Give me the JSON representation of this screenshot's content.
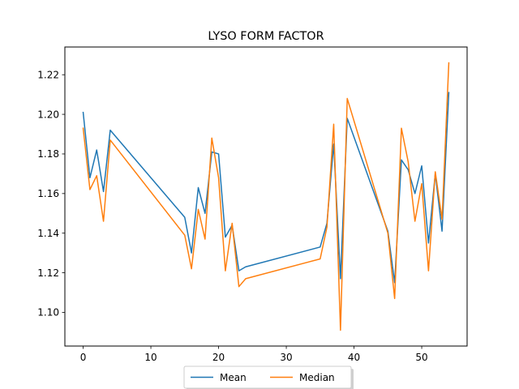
{
  "chart_data": {
    "type": "line",
    "title": "LYSO FORM FACTOR",
    "xlabel": "",
    "ylabel": "",
    "xlim": [
      -2.7,
      56.7
    ],
    "ylim": [
      1.083,
      1.234
    ],
    "xticks": [
      0,
      10,
      20,
      30,
      40,
      50
    ],
    "yticks": [
      1.1,
      1.12,
      1.14,
      1.16,
      1.18,
      1.2,
      1.22
    ],
    "grid": false,
    "legend": {
      "placement": "bottom-center-outside",
      "columns": 2
    },
    "series": [
      {
        "name": "Mean",
        "color": "#1f77b4",
        "points": [
          [
            0,
            1.201
          ],
          [
            1,
            1.168
          ],
          [
            2,
            1.182
          ],
          [
            3,
            1.161
          ],
          [
            4,
            1.192
          ],
          [
            15,
            1.148
          ],
          [
            16,
            1.13
          ],
          [
            17,
            1.163
          ],
          [
            18,
            1.15
          ],
          [
            19,
            1.181
          ],
          [
            20,
            1.18
          ],
          [
            21,
            1.138
          ],
          [
            22,
            1.144
          ],
          [
            23,
            1.121
          ],
          [
            24,
            1.123
          ],
          [
            35,
            1.133
          ],
          [
            36,
            1.145
          ],
          [
            37,
            1.185
          ],
          [
            38,
            1.117
          ],
          [
            39,
            1.198
          ],
          [
            45,
            1.141
          ],
          [
            46,
            1.115
          ],
          [
            47,
            1.177
          ],
          [
            48,
            1.172
          ],
          [
            49,
            1.16
          ],
          [
            50,
            1.174
          ],
          [
            51,
            1.135
          ],
          [
            52,
            1.17
          ],
          [
            53,
            1.141
          ],
          [
            54,
            1.211
          ]
        ]
      },
      {
        "name": "Median",
        "color": "#ff7f0e",
        "points": [
          [
            0,
            1.193
          ],
          [
            1,
            1.162
          ],
          [
            2,
            1.169
          ],
          [
            3,
            1.146
          ],
          [
            4,
            1.187
          ],
          [
            15,
            1.139
          ],
          [
            16,
            1.122
          ],
          [
            17,
            1.152
          ],
          [
            18,
            1.137
          ],
          [
            19,
            1.188
          ],
          [
            20,
            1.168
          ],
          [
            21,
            1.121
          ],
          [
            22,
            1.145
          ],
          [
            23,
            1.113
          ],
          [
            24,
            1.117
          ],
          [
            35,
            1.127
          ],
          [
            36,
            1.143
          ],
          [
            37,
            1.195
          ],
          [
            38,
            1.091
          ],
          [
            39,
            1.208
          ],
          [
            45,
            1.14
          ],
          [
            46,
            1.107
          ],
          [
            47,
            1.193
          ],
          [
            48,
            1.176
          ],
          [
            49,
            1.146
          ],
          [
            50,
            1.165
          ],
          [
            51,
            1.121
          ],
          [
            52,
            1.171
          ],
          [
            53,
            1.147
          ],
          [
            54,
            1.226
          ]
        ]
      }
    ]
  }
}
